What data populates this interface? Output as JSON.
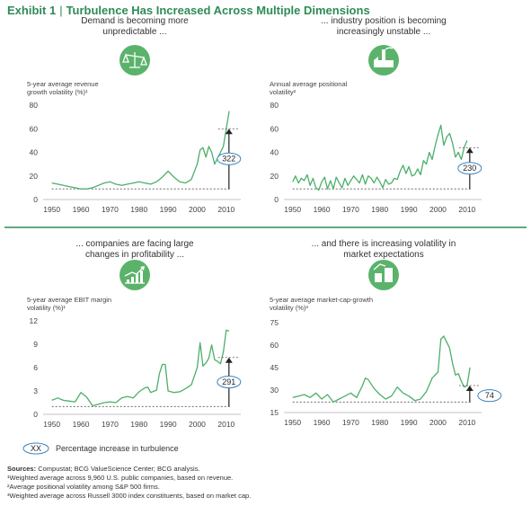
{
  "exhibit": {
    "label": "Exhibit 1",
    "title": "Turbulence Has Increased Across Multiple Dimensions"
  },
  "legend": {
    "marker": "XX",
    "text": "Percentage increase in turbulence"
  },
  "footnotes": {
    "sources_label": "Sources:",
    "sources_text": "Compustat; BCG ValueScience Center; BCG analysis.",
    "notes": [
      "¹Weighted average across 9,960 U.S. public companies, based on revenue.",
      "²Average positional volatility among S&P 500 firms.",
      "³Weighted average across Russell 3000 index constituents, based on market cap."
    ]
  },
  "colors": {
    "accent": "#2e8b57",
    "series": "#4caf6a",
    "icon": "#5bb36b",
    "callout": "#3b82c4"
  },
  "panels": [
    {
      "title": [
        "Demand is becoming more",
        "unpredictable ..."
      ],
      "ylabel": [
        "5-year average revenue",
        "growth volatility (%)¹"
      ],
      "icon": "scale-icon",
      "pct_label": "322",
      "chart_data": {
        "type": "line",
        "xlim": [
          1947,
          2015
        ],
        "ylim": [
          0,
          80
        ],
        "xticks": [
          1950,
          1960,
          1970,
          1980,
          1990,
          2000,
          2010
        ],
        "yticks": [
          0,
          20,
          40,
          60,
          80
        ],
        "x": [
          1950,
          1952,
          1954,
          1956,
          1958,
          1960,
          1962,
          1964,
          1966,
          1968,
          1970,
          1972,
          1974,
          1976,
          1978,
          1980,
          1982,
          1984,
          1986,
          1988,
          1990,
          1992,
          1994,
          1996,
          1998,
          2000,
          2001,
          2002,
          2003,
          2004,
          2005,
          2006,
          2007,
          2008,
          2009,
          2010,
          2011
        ],
        "y": [
          14,
          13,
          12,
          11,
          10,
          9,
          9,
          10,
          12,
          14,
          15,
          13,
          12,
          13,
          14,
          15,
          14,
          13,
          15,
          19,
          24,
          19,
          15,
          14,
          17,
          30,
          42,
          44,
          36,
          45,
          40,
          30,
          35,
          40,
          45,
          60,
          75
        ],
        "baseline": 9,
        "ref": 60
      }
    },
    {
      "title": [
        "... industry position is becoming",
        "increasingly unstable ..."
      ],
      "ylabel": [
        "Annual average positional",
        "volatility²"
      ],
      "icon": "factory-icon",
      "pct_label": "230",
      "chart_data": {
        "type": "line",
        "xlim": [
          1947,
          2015
        ],
        "ylim": [
          0,
          80
        ],
        "xticks": [
          1950,
          1960,
          1970,
          1980,
          1990,
          2000,
          2010
        ],
        "yticks": [
          0,
          20,
          40,
          60,
          80
        ],
        "x": [
          1950,
          1951,
          1952,
          1953,
          1954,
          1955,
          1956,
          1957,
          1958,
          1959,
          1960,
          1961,
          1962,
          1963,
          1964,
          1965,
          1966,
          1967,
          1968,
          1969,
          1970,
          1971,
          1972,
          1973,
          1974,
          1975,
          1976,
          1977,
          1978,
          1979,
          1980,
          1981,
          1982,
          1983,
          1984,
          1985,
          1986,
          1987,
          1988,
          1989,
          1990,
          1991,
          1992,
          1993,
          1994,
          1995,
          1996,
          1997,
          1998,
          1999,
          2000,
          2001,
          2002,
          2003,
          2004,
          2005,
          2006,
          2007,
          2008,
          2009,
          2010
        ],
        "y": [
          15,
          20,
          14,
          18,
          16,
          21,
          12,
          18,
          10,
          8,
          15,
          19,
          9,
          16,
          9,
          19,
          14,
          10,
          18,
          12,
          16,
          20,
          17,
          14,
          21,
          13,
          20,
          18,
          14,
          19,
          15,
          10,
          17,
          13,
          14,
          18,
          17,
          24,
          29,
          22,
          28,
          20,
          21,
          26,
          21,
          33,
          30,
          40,
          34,
          45,
          55,
          63,
          46,
          53,
          56,
          48,
          36,
          40,
          34,
          44,
          50
        ],
        "baseline": 9,
        "ref": 44
      }
    },
    {
      "title": [
        "... companies are facing large",
        "changes in profitability ..."
      ],
      "ylabel": [
        "5-year average EBIT margin",
        "volatility (%)¹"
      ],
      "icon": "rising-chart-icon",
      "pct_label": "291",
      "chart_data": {
        "type": "line",
        "xlim": [
          1947,
          2015
        ],
        "ylim": [
          0,
          12
        ],
        "xticks": [
          1950,
          1960,
          1970,
          1980,
          1990,
          2000,
          2010
        ],
        "yticks": [
          0,
          3,
          6,
          9,
          12
        ],
        "x": [
          1950,
          1952,
          1954,
          1956,
          1958,
          1960,
          1962,
          1964,
          1966,
          1968,
          1970,
          1972,
          1974,
          1976,
          1978,
          1980,
          1982,
          1983,
          1984,
          1986,
          1987,
          1988,
          1989,
          1990,
          1992,
          1994,
          1996,
          1998,
          2000,
          2001,
          2002,
          2003,
          2004,
          2005,
          2006,
          2007,
          2008,
          2009,
          2010,
          2011
        ],
        "y": [
          1.8,
          2.1,
          1.8,
          1.7,
          1.6,
          2.8,
          2.2,
          1.1,
          1.3,
          1.5,
          1.6,
          1.5,
          2.1,
          2.3,
          2.1,
          2.9,
          3.4,
          3.5,
          2.8,
          3.1,
          5.2,
          6.4,
          6.4,
          3.0,
          2.8,
          2.9,
          3.3,
          3.8,
          6.0,
          9.2,
          6.2,
          6.6,
          7.2,
          8.9,
          7.0,
          6.8,
          6.5,
          8.0,
          10.8,
          10.7
        ],
        "baseline": 1.0,
        "ref": 7.3
      }
    },
    {
      "title": [
        "... and there is increasing volatility in",
        "market expectations"
      ],
      "ylabel": [
        "5-year average market-cap-growth",
        "volatility (%)³"
      ],
      "icon": "market-icon",
      "pct_label": "74",
      "chart_data": {
        "type": "line",
        "xlim": [
          1947,
          2015
        ],
        "ylim": [
          15,
          75
        ],
        "xticks": [
          1950,
          1960,
          1970,
          1980,
          1990,
          2000,
          2010
        ],
        "yticks": [
          15,
          30,
          45,
          60,
          75
        ],
        "x": [
          1950,
          1952,
          1954,
          1956,
          1958,
          1960,
          1962,
          1964,
          1966,
          1968,
          1970,
          1972,
          1974,
          1975,
          1976,
          1978,
          1980,
          1982,
          1984,
          1986,
          1988,
          1990,
          1992,
          1994,
          1996,
          1998,
          2000,
          2001,
          2002,
          2003,
          2004,
          2005,
          2006,
          2007,
          2008,
          2009,
          2010,
          2011
        ],
        "y": [
          25,
          26,
          27,
          25,
          28,
          24,
          27,
          22,
          24,
          26,
          28,
          25,
          33,
          38,
          37,
          31,
          27,
          24,
          26,
          32,
          28,
          26,
          23,
          24,
          29,
          38,
          42,
          64,
          66,
          62,
          58,
          48,
          40,
          41,
          36,
          32,
          33,
          45
        ],
        "baseline": 22,
        "ref": 33
      }
    }
  ]
}
